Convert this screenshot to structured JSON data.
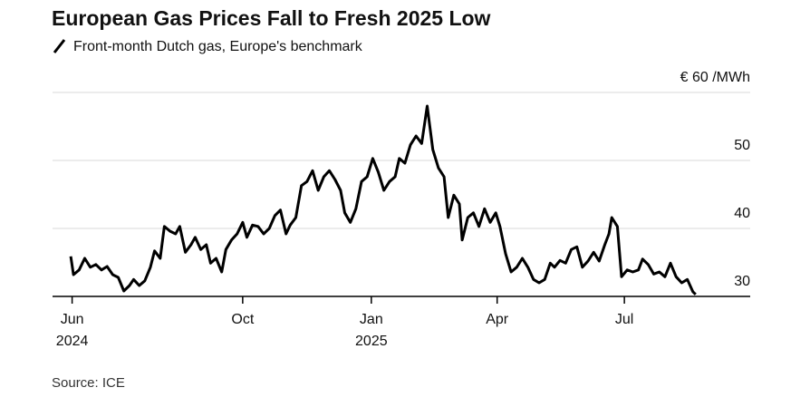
{
  "chart_data": {
    "type": "line",
    "title": "European Gas Prices Fall to Fresh 2025 Low",
    "subtitle": "Front-month Dutch gas, Europe's benchmark",
    "source": "Source: ICE",
    "xlim": [
      "2024-05-18",
      "2025-09-29"
    ],
    "xticks": [
      {
        "value": "2024-06-01",
        "label": "Jun",
        "year": "2024"
      },
      {
        "value": "2024-10-01",
        "label": "Oct"
      },
      {
        "value": "2025-01-01",
        "label": "Jan",
        "year": "2025"
      },
      {
        "value": "2025-04-01",
        "label": "Apr"
      },
      {
        "value": "2025-07-01",
        "label": "Jul"
      }
    ],
    "ylim": [
      30,
      60
    ],
    "yticks": [
      30,
      40,
      50,
      {
        "value": 60,
        "label": "€ 60 /MWh"
      }
    ],
    "grid": true,
    "x": [
      "2024-05-31",
      "2024-06-02",
      "2024-06-06",
      "2024-06-10",
      "2024-06-14",
      "2024-06-18",
      "2024-06-22",
      "2024-06-26",
      "2024-06-30",
      "2024-07-04",
      "2024-07-08",
      "2024-07-12",
      "2024-07-15",
      "2024-07-19",
      "2024-07-23",
      "2024-07-27",
      "2024-07-30",
      "2024-08-03",
      "2024-08-06",
      "2024-08-10",
      "2024-08-14",
      "2024-08-17",
      "2024-08-21",
      "2024-08-25",
      "2024-08-28",
      "2024-09-01",
      "2024-09-05",
      "2024-09-08",
      "2024-09-12",
      "2024-09-16",
      "2024-09-19",
      "2024-09-23",
      "2024-09-27",
      "2024-10-01",
      "2024-10-04",
      "2024-10-08",
      "2024-10-12",
      "2024-10-16",
      "2024-10-20",
      "2024-10-24",
      "2024-10-28",
      "2024-11-01",
      "2024-11-04",
      "2024-11-08",
      "2024-11-12",
      "2024-11-16",
      "2024-11-20",
      "2024-11-24",
      "2024-11-28",
      "2024-12-02",
      "2024-12-06",
      "2024-12-10",
      "2024-12-13",
      "2024-12-17",
      "2024-12-21",
      "2024-12-25",
      "2024-12-29",
      "2025-01-02",
      "2025-01-06",
      "2025-01-10",
      "2025-01-14",
      "2025-01-18",
      "2025-01-21",
      "2025-01-25",
      "2025-01-29",
      "2025-02-02",
      "2025-02-06",
      "2025-02-10",
      "2025-02-14",
      "2025-02-18",
      "2025-02-22",
      "2025-02-25",
      "2025-03-01",
      "2025-03-05",
      "2025-03-07",
      "2025-03-11",
      "2025-03-15",
      "2025-03-19",
      "2025-03-23",
      "2025-03-27",
      "2025-03-31",
      "2025-04-03",
      "2025-04-07",
      "2025-04-11",
      "2025-04-15",
      "2025-04-19",
      "2025-04-23",
      "2025-04-27",
      "2025-05-01",
      "2025-05-05",
      "2025-05-09",
      "2025-05-12",
      "2025-05-16",
      "2025-05-20",
      "2025-05-24",
      "2025-05-28",
      "2025-06-01",
      "2025-06-05",
      "2025-06-09",
      "2025-06-13",
      "2025-06-17",
      "2025-06-20",
      "2025-06-22",
      "2025-06-26",
      "2025-06-29",
      "2025-07-03",
      "2025-07-07",
      "2025-07-11",
      "2025-07-14",
      "2025-07-18",
      "2025-07-22",
      "2025-07-26",
      "2025-07-30",
      "2025-08-03",
      "2025-08-07",
      "2025-08-11",
      "2025-08-15",
      "2025-08-19",
      "2025-08-21"
    ],
    "series": [
      {
        "name": "Front-month Dutch gas",
        "color": "#000000",
        "values": [
          35.9,
          33.2,
          33.9,
          35.6,
          34.3,
          34.7,
          33.9,
          34.4,
          33.2,
          32.8,
          30.8,
          31.6,
          32.5,
          31.6,
          32.3,
          34.3,
          36.7,
          35.6,
          40.3,
          39.6,
          39.2,
          40.3,
          36.5,
          37.6,
          38.7,
          36.9,
          37.6,
          34.9,
          35.6,
          33.6,
          36.9,
          38.3,
          39.2,
          40.9,
          38.7,
          40.5,
          40.3,
          39.2,
          40.0,
          41.9,
          42.7,
          39.2,
          40.5,
          41.6,
          46.3,
          46.9,
          48.5,
          45.6,
          47.6,
          48.5,
          47.2,
          45.6,
          42.3,
          40.9,
          42.9,
          46.9,
          47.6,
          50.3,
          48.3,
          45.6,
          46.9,
          47.6,
          50.3,
          49.6,
          52.3,
          53.6,
          52.5,
          58.0,
          51.6,
          48.9,
          47.6,
          41.6,
          44.9,
          43.6,
          38.3,
          41.6,
          42.3,
          40.3,
          42.9,
          40.9,
          42.3,
          40.3,
          36.3,
          33.6,
          34.3,
          35.6,
          34.3,
          32.5,
          32.0,
          32.5,
          34.9,
          34.3,
          35.3,
          34.9,
          36.9,
          37.3,
          34.3,
          35.2,
          36.5,
          35.2,
          37.6,
          39.2,
          41.6,
          40.3,
          32.9,
          33.9,
          33.6,
          33.9,
          35.5,
          34.7,
          33.3,
          33.6,
          32.9,
          34.9,
          32.9,
          32.0,
          32.5,
          30.7,
          30.3
        ]
      }
    ]
  }
}
